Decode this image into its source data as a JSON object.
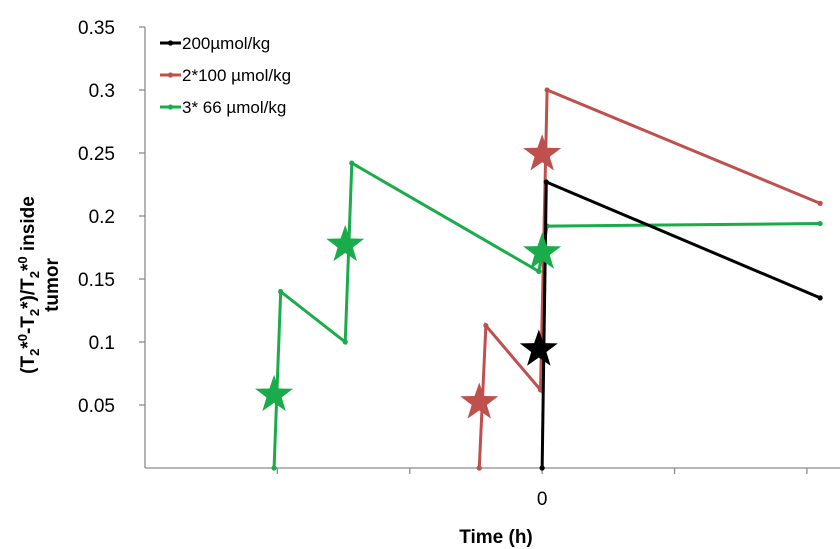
{
  "chart_data": {
    "type": "line",
    "title": "",
    "xlabel": "Time (h)",
    "ylabel_line1": "(T2*0-T2*)/T2*0  inside",
    "ylabel_line2": "tumor",
    "ylim": [
      0,
      0.35
    ],
    "yticks": [
      0.05,
      0.1,
      0.15,
      0.2,
      0.25,
      0.3,
      0.35
    ],
    "ytick_labels": [
      "0.05",
      "0.1",
      "0.15",
      "0.2",
      "0.25",
      "0.3",
      "0.35"
    ],
    "xlim": [
      -24,
      18
    ],
    "xticks": [
      -16,
      -8,
      0,
      8,
      16
    ],
    "xtick_labels": [
      "0"
    ],
    "grid": false,
    "legend_position": "top-left-inside",
    "series": [
      {
        "name": "200µmol/kg",
        "color": "#000000",
        "points": [
          [
            0,
            0
          ],
          [
            0.25,
            0.227
          ],
          [
            16.8,
            0.135
          ]
        ],
        "injections": [
          [
            -0.2,
            0.094
          ]
        ]
      },
      {
        "name": "2*100 µmol/kg",
        "color": "#c0504d",
        "points": [
          [
            -3.8,
            0
          ],
          [
            -3.4,
            0.113
          ],
          [
            -0.1,
            0.062
          ],
          [
            0.3,
            0.3
          ],
          [
            16.8,
            0.21
          ]
        ],
        "injections": [
          [
            -3.8,
            0.052
          ],
          [
            0,
            0.249
          ]
        ]
      },
      {
        "name": "3* 66 µmol/kg",
        "color": "#1aac4b",
        "points": [
          [
            -16.2,
            0
          ],
          [
            -15.8,
            0.14
          ],
          [
            -11.9,
            0.1
          ],
          [
            -11.5,
            0.242
          ],
          [
            -0.2,
            0.156
          ],
          [
            0.3,
            0.192
          ],
          [
            16.8,
            0.194
          ]
        ],
        "injections": [
          [
            -16.2,
            0.058
          ],
          [
            -11.9,
            0.177
          ],
          [
            0,
            0.171
          ]
        ]
      }
    ]
  }
}
